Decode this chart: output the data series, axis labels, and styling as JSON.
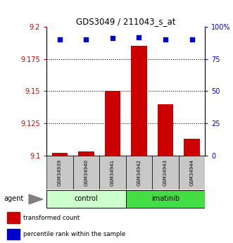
{
  "title": "GDS3049 / 211043_s_at",
  "samples": [
    "GSM34939",
    "GSM34940",
    "GSM34941",
    "GSM34942",
    "GSM34943",
    "GSM34944"
  ],
  "red_values": [
    9.102,
    9.103,
    9.15,
    9.185,
    9.14,
    9.113
  ],
  "blue_percentiles": [
    90,
    90,
    91,
    92,
    90,
    90
  ],
  "ylim_left": [
    9.1,
    9.2
  ],
  "ylim_right": [
    0,
    100
  ],
  "yticks_left": [
    9.1,
    9.125,
    9.15,
    9.175,
    9.2
  ],
  "yticks_right": [
    0,
    25,
    50,
    75,
    100
  ],
  "ytick_labels_left": [
    "9.1",
    "9.125",
    "9.15",
    "9.175",
    "9.2"
  ],
  "ytick_labels_right": [
    "0",
    "25",
    "50",
    "75",
    "100%"
  ],
  "groups": [
    {
      "label": "control",
      "indices": [
        0,
        1,
        2
      ],
      "color": "#CCFFCC"
    },
    {
      "label": "imatinib",
      "indices": [
        3,
        4,
        5
      ],
      "color": "#44DD44"
    }
  ],
  "bar_color": "#CC0000",
  "dot_color": "#0000CC",
  "bar_width": 0.6,
  "left_tick_color": "#CC0000",
  "right_tick_color": "#0000CC",
  "plot_bg": "#FFFFFF",
  "sample_bg": "#C8C8C8",
  "agent_label": "agent",
  "legend_items": [
    {
      "color": "#CC0000",
      "label": "transformed count"
    },
    {
      "color": "#0000CC",
      "label": "percentile rank within the sample"
    }
  ]
}
